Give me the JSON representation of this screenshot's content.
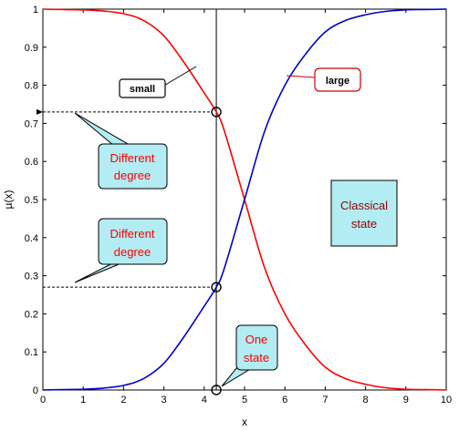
{
  "chart_data": {
    "type": "line",
    "xlabel": "x",
    "ylabel": "µ(x)",
    "xlim": [
      0,
      10
    ],
    "ylim": [
      0,
      1
    ],
    "x_ticks": [
      0,
      1,
      2,
      3,
      4,
      5,
      6,
      7,
      8,
      9,
      10
    ],
    "y_ticks": [
      0,
      0.1,
      0.2,
      0.3,
      0.4,
      0.5,
      0.6,
      0.7,
      0.8,
      0.9,
      1
    ],
    "grid": false,
    "series": [
      {
        "name": "small",
        "color": "#ff0000",
        "x": [
          0,
          0.5,
          1,
          1.5,
          2,
          2.5,
          3,
          3.5,
          4,
          4.3,
          4.5,
          5,
          5.5,
          6,
          6.5,
          7,
          7.5,
          8,
          8.5,
          9,
          9.5,
          10
        ],
        "y": [
          1.0,
          0.999,
          0.998,
          0.995,
          0.988,
          0.97,
          0.93,
          0.86,
          0.78,
          0.73,
          0.68,
          0.5,
          0.32,
          0.2,
          0.12,
          0.06,
          0.03,
          0.015,
          0.006,
          0.002,
          0.001,
          0.0
        ]
      },
      {
        "name": "large",
        "color": "#0000cc",
        "x": [
          0,
          0.5,
          1,
          1.5,
          2,
          2.5,
          3,
          3.5,
          4,
          4.3,
          4.5,
          5,
          5.5,
          6,
          6.5,
          7,
          7.5,
          8,
          8.5,
          9,
          9.5,
          10
        ],
        "y": [
          0.0,
          0.001,
          0.002,
          0.005,
          0.012,
          0.03,
          0.07,
          0.14,
          0.22,
          0.27,
          0.32,
          0.5,
          0.68,
          0.8,
          0.88,
          0.94,
          0.97,
          0.985,
          0.994,
          0.998,
          0.999,
          1.0
        ]
      }
    ],
    "vertical_line_x": 4.3,
    "highlight_points": [
      {
        "x": 4.3,
        "y": 0.73
      },
      {
        "x": 4.3,
        "y": 0.27
      },
      {
        "x": 4.3,
        "y": 0
      }
    ],
    "annotations": {
      "small": "small",
      "large": "large",
      "different_degree_1": [
        "Different",
        "degree"
      ],
      "different_degree_2": [
        "Different",
        "degree"
      ],
      "classical_state": [
        "Classical",
        "state"
      ],
      "one_state": [
        "One",
        "state"
      ]
    },
    "colors": {
      "axis": "#000000",
      "callout_fill": "#b3ecf2",
      "callout_text": "#ff0000",
      "classical_fill": "#b3ecf2",
      "classical_text": "#990000"
    }
  }
}
